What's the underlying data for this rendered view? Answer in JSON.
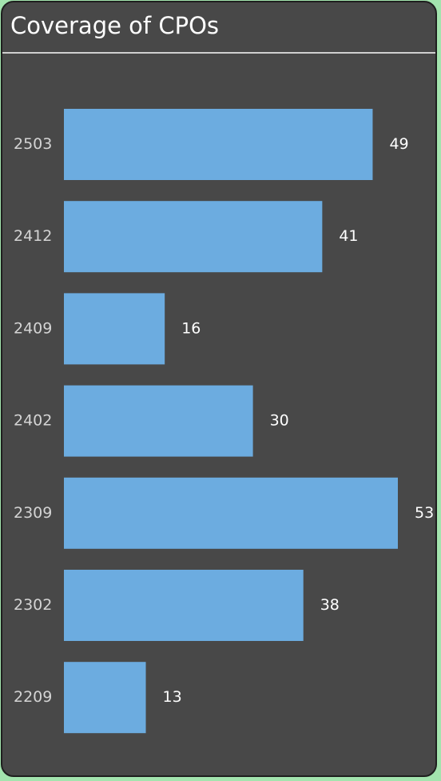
{
  "chart_data": {
    "type": "bar",
    "orientation": "horizontal",
    "title": "Coverage of CPOs",
    "categories": [
      "2503",
      "2412",
      "2409",
      "2402",
      "2309",
      "2302",
      "2209"
    ],
    "values": [
      49,
      41,
      16,
      30,
      53,
      38,
      13
    ],
    "xlabel": "",
    "ylabel": "",
    "xlim": [
      0,
      53
    ],
    "grid": false,
    "data_labels": true,
    "bar_color": "#6cace0",
    "background_color": "#484848"
  }
}
